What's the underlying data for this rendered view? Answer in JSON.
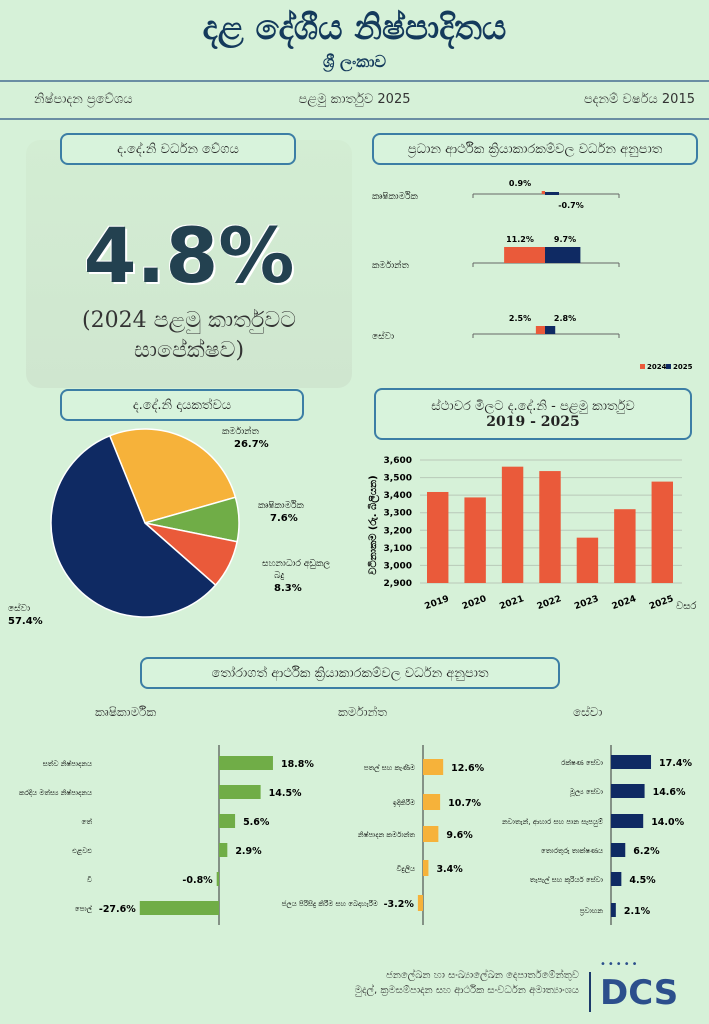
{
  "header": {
    "title": "දළ දේශීය නිෂ්පාදිතය",
    "subtitle": "ශ්‍රී ලංකාව",
    "meta_left": "නිෂ්පාදන ප්‍රවේශය",
    "meta_center": "පළමු කාර්තුව 2025",
    "meta_right": "පදනම් වර්ෂය 2015"
  },
  "growth": {
    "title": "ද.දේ.නි වර්ධන වේගය",
    "value": "4.8%",
    "note": "(2024 පළමු කාර්තුවට සාපේක්ෂව)"
  },
  "colors": {
    "y2024": "#ea5a3a",
    "y2025": "#0f2a63",
    "agri": "#70ad47",
    "ind": "#f6b23a",
    "serv": "#0f2a63",
    "tax": "#ea5a3a"
  },
  "chart_data": [
    {
      "type": "bar",
      "title": "ප්‍රධාන ආර්ථික ක්‍රියාකාරකම්වල වර්ධන අනුපාත",
      "categories": [
        "කෘෂිකාර්මික",
        "කර්මාන්ත",
        "සේවා"
      ],
      "series": [
        {
          "name": "2024",
          "values": [
            0.9,
            11.2,
            2.5
          ],
          "labels": [
            "0.9%",
            "11.2%",
            "2.5%"
          ]
        },
        {
          "name": "2025",
          "values": [
            -0.7,
            9.7,
            2.8
          ],
          "labels": [
            "-0.7%",
            "9.7%",
            "2.8%"
          ]
        }
      ],
      "legend": "bottom-right"
    },
    {
      "type": "pie",
      "title": "ද.දේ.නි දායකත්වය",
      "slices": [
        {
          "name": "කර්මාන්ත",
          "value": 26.7,
          "label": "26.7%"
        },
        {
          "name": "කෘෂිකාර්මික",
          "value": 7.6,
          "label": "7.6%"
        },
        {
          "name": "සහනාධාර අඩුකල බදු",
          "value": 8.3,
          "label": "8.3%"
        },
        {
          "name": "සේවා",
          "value": 57.4,
          "label": "57.4%"
        }
      ]
    },
    {
      "type": "bar",
      "title": "ස්ථාවර මිලට ද.දේ.නි - පළමු කාර්තුව",
      "title2": "2019 - 2025",
      "categories": [
        "2019",
        "2020",
        "2021",
        "2022",
        "2023",
        "2024",
        "2025"
      ],
      "values": [
        3418,
        3387,
        3562,
        3537,
        3158,
        3320,
        3477
      ],
      "ylabel": "වටිනාකම (රු. බිලියන)",
      "xlabel": "වසර",
      "ylim": [
        2900,
        3600
      ],
      "yticks": [
        "2,900",
        "3,000",
        "3,100",
        "3,200",
        "3,300",
        "3,400",
        "3,500",
        "3,600"
      ],
      "grid": true
    },
    {
      "type": "bar",
      "orientation": "horizontal",
      "title": "කෘෂිකාර්මික",
      "categories": [
        "සත්ව නිෂ්පාදනය",
        "කරදිය මත්ස්‍ය නිෂ්පාදනය",
        "තේ",
        "එළවළු",
        "වී",
        "පොල්"
      ],
      "values": [
        18.8,
        14.5,
        5.6,
        2.9,
        -0.8,
        -27.6
      ],
      "labels": [
        "18.8%",
        "14.5%",
        "5.6%",
        "2.9%",
        "-0.8%",
        "-27.6%"
      ]
    },
    {
      "type": "bar",
      "orientation": "horizontal",
      "title": "කර්මාන්ත",
      "categories": [
        "පතල් සහ කැණීම",
        "ඉදිකිරීම",
        "නිෂ්පාදන කර්මාන්ත",
        "විදුලිය",
        "ජලය පිරිසිදු කිරීම සහ බෙදාහැරීම"
      ],
      "values": [
        12.6,
        10.7,
        9.6,
        3.4,
        -3.2
      ],
      "labels": [
        "12.6%",
        "10.7%",
        "9.6%",
        "3.4%",
        "-3.2%"
      ]
    },
    {
      "type": "bar",
      "orientation": "horizontal",
      "title": "සේවා",
      "categories": [
        "රක්ෂණ සේවා",
        "මූල්‍ය සේවා",
        "නවාතැන්, ආහාර සහ පාන සැපයුම්",
        "තොරතුරු තාක්ෂණය",
        "තැපැල් සහ කුරියර් සේවා",
        "ප්‍රවාහන"
      ],
      "values": [
        17.4,
        14.6,
        14.0,
        6.2,
        4.5,
        2.1
      ],
      "labels": [
        "17.4%",
        "14.6%",
        "14.0%",
        "6.2%",
        "4.5%",
        "2.1%"
      ]
    }
  ],
  "bottom_title": "තෝරාගත් ආර්ථික ක්‍රියාකාරකම්වල වර්ධන අනුපාත",
  "footer": {
    "line1": "ජනලේඛන හා සංඛ්‍යාලේඛන දෙපාර්තමේන්තුව",
    "line2": "මුදල්, ක්‍රමසම්පාදන සහ ආර්ථික සංවර්ධන අමාත්‍යාංශය",
    "logo": "DCS"
  }
}
